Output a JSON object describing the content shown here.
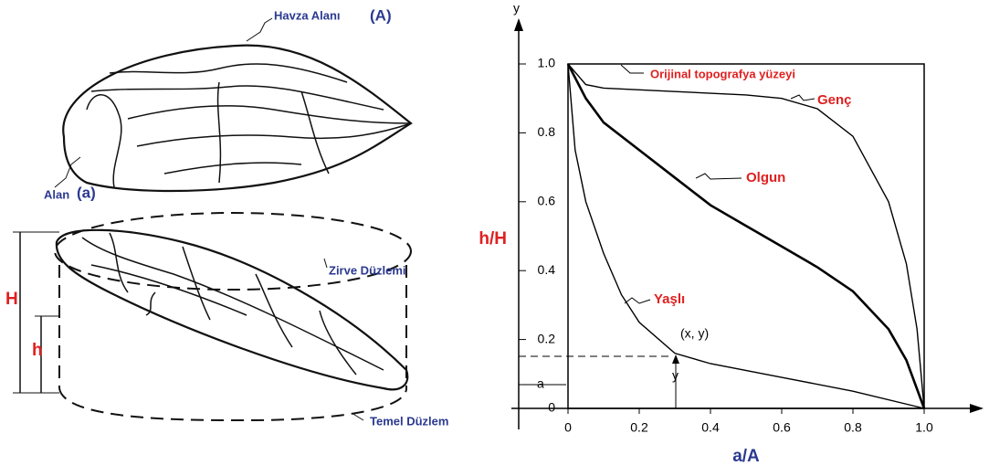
{
  "basin": {
    "area_label": "Havza Alanı",
    "area_symbol": "(A)",
    "sub_area_label": "Alan",
    "sub_area_symbol": "(a)",
    "summit_plane": "Zirve Düzlemi",
    "H": "H",
    "h": "h",
    "base_plane": "Temel Düzlem"
  },
  "chart_data": {
    "type": "line",
    "y_axis_letter": "y",
    "ylabel": "h/H",
    "xlabel": "a/A",
    "xlim": [
      0,
      1
    ],
    "ylim": [
      0,
      1
    ],
    "xticks": [
      0,
      0.2,
      0.4,
      0.6,
      0.8,
      {
        "value": 1,
        "label": "1.0"
      }
    ],
    "yticks": [
      0,
      0.2,
      0.4,
      0.6,
      0.8,
      {
        "value": 1,
        "label": "1.0"
      }
    ],
    "series": [
      {
        "name": "Genç",
        "color": "#000000",
        "x": [
          0,
          0.05,
          0.1,
          0.3,
          0.5,
          0.6,
          0.7,
          0.8,
          0.9,
          0.95,
          0.98,
          1
        ],
        "values": [
          1,
          0.94,
          0.93,
          0.92,
          0.91,
          0.9,
          0.87,
          0.79,
          0.6,
          0.42,
          0.23,
          0
        ]
      },
      {
        "name": "Olgun",
        "color": "#000000",
        "x": [
          0,
          0.05,
          0.1,
          0.2,
          0.3,
          0.4,
          0.5,
          0.6,
          0.7,
          0.8,
          0.9,
          0.95,
          1
        ],
        "values": [
          1,
          0.9,
          0.83,
          0.75,
          0.67,
          0.59,
          0.53,
          0.47,
          0.41,
          0.34,
          0.23,
          0.14,
          0
        ]
      },
      {
        "name": "Yaşlı",
        "color": "#000000",
        "x": [
          0,
          0.02,
          0.05,
          0.1,
          0.15,
          0.2,
          0.3,
          0.4,
          0.6,
          0.8,
          1
        ],
        "values": [
          1,
          0.75,
          0.6,
          0.45,
          0.33,
          0.25,
          0.16,
          0.13,
          0.09,
          0.05,
          0
        ]
      }
    ],
    "annotations": {
      "surface": "Orijinal topografya yüzeyi",
      "point": "(x, y)",
      "a": "a",
      "y": "y"
    }
  }
}
